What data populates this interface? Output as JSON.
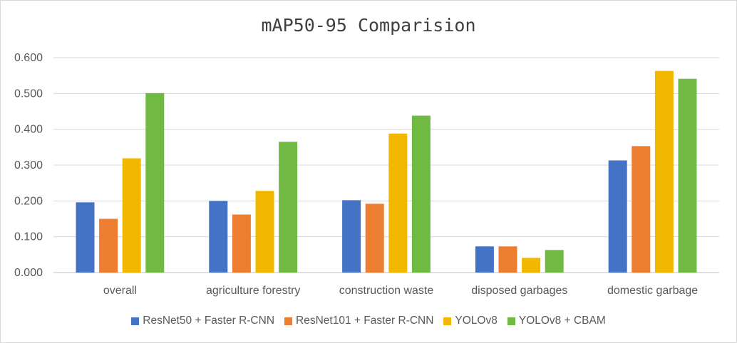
{
  "chart_data": {
    "type": "bar",
    "title": "mAP50-95 Comparision",
    "categories": [
      "overall",
      "agriculture forestry",
      "construction waste",
      "disposed garbages",
      "domestic garbage"
    ],
    "series": [
      {
        "name": "ResNet50 + Faster R-CNN",
        "color": "#4472c4",
        "values": [
          0.196,
          0.2,
          0.202,
          0.073,
          0.313
        ]
      },
      {
        "name": "ResNet101 + Faster R-CNN",
        "color": "#ed7d31",
        "values": [
          0.15,
          0.162,
          0.192,
          0.073,
          0.353
        ]
      },
      {
        "name": "YOLOv8",
        "color": "#f2b800",
        "values": [
          0.319,
          0.228,
          0.388,
          0.041,
          0.563
        ]
      },
      {
        "name": "YOLOv8 + CBAM",
        "color": "#70b943",
        "values": [
          0.501,
          0.365,
          0.438,
          0.063,
          0.541
        ]
      }
    ],
    "yticks": [
      "0.000",
      "0.100",
      "0.200",
      "0.300",
      "0.400",
      "0.500",
      "0.600"
    ],
    "ylim": [
      0,
      0.6
    ],
    "grid": true,
    "legend_position": "bottom"
  }
}
